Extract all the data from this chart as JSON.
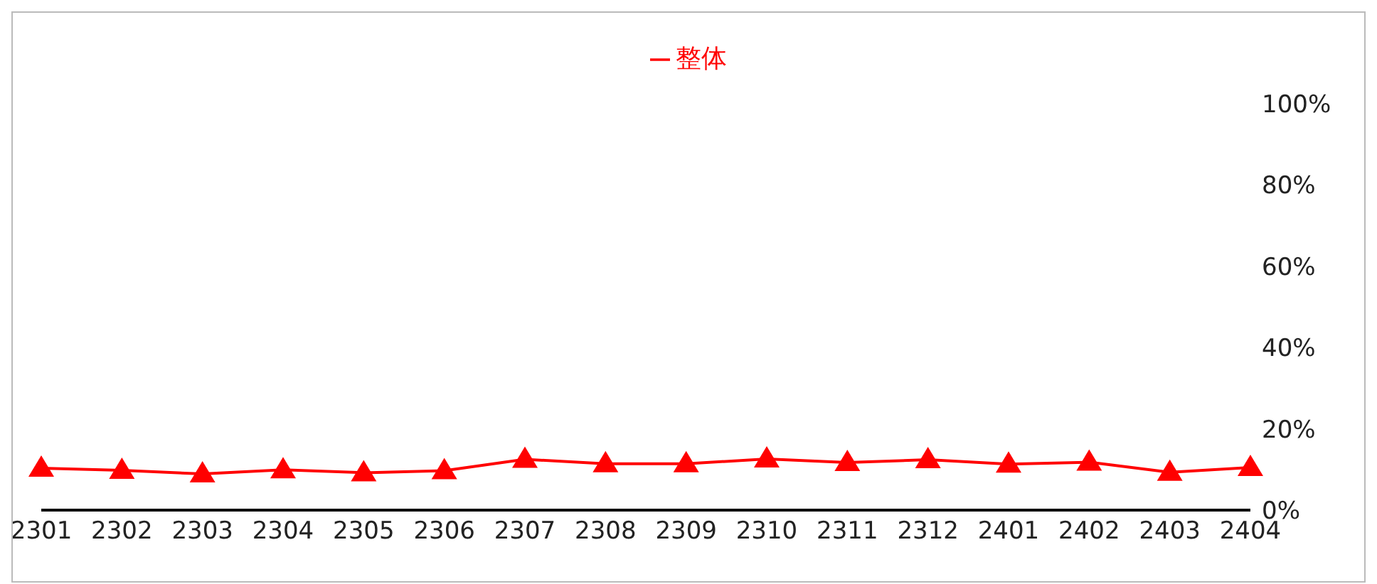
{
  "chart_data": {
    "type": "line",
    "categories": [
      "2301",
      "2302",
      "2303",
      "2304",
      "2305",
      "2306",
      "2307",
      "2308",
      "2309",
      "2310",
      "2311",
      "2312",
      "2401",
      "2402",
      "2403",
      "2404"
    ],
    "series": [
      {
        "name": "整体",
        "color": "#ff0000",
        "values": [
          10.3,
          9.8,
          8.9,
          9.9,
          9.2,
          9.7,
          12.5,
          11.4,
          11.4,
          12.6,
          11.7,
          12.4,
          11.3,
          11.8,
          9.3,
          10.5
        ]
      }
    ],
    "ylim": [
      0,
      100
    ],
    "yticks": [
      {
        "value": 0,
        "label": "0%"
      },
      {
        "value": 20,
        "label": "20%"
      },
      {
        "value": 40,
        "label": "40%"
      },
      {
        "value": 60,
        "label": "60%"
      },
      {
        "value": 80,
        "label": "80%"
      },
      {
        "value": 100,
        "label": "100%"
      }
    ],
    "grid": false,
    "legend": "top",
    "marker": "triangle",
    "line_style": "solid"
  }
}
